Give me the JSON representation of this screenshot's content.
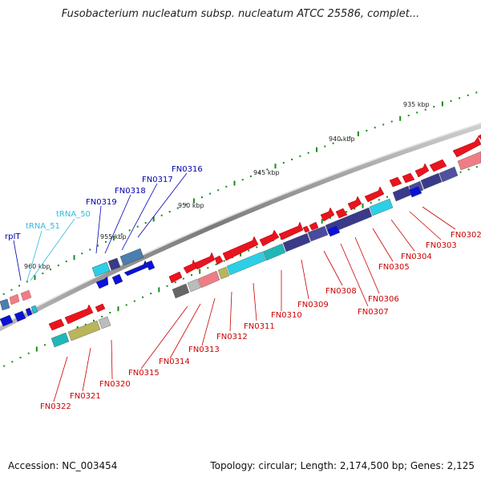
{
  "title": "Fusobacterium nucleatum subsp. nucleatum ATCC 25586, complet...",
  "footer": {
    "accession": "Accession: NC_003454",
    "summary": "Topology: circular; Length: 2,174,500 bp; Genes: 2,125"
  },
  "scale_labels": [
    "935 kbp",
    "940 kbp",
    "945 kbp",
    "950 kbp",
    "955 kbp",
    "960 kbp"
  ],
  "upper_labels": [
    {
      "text": "rpIT",
      "color": "#0000aa"
    },
    {
      "text": "tRNA_51",
      "color": "#33bbdd"
    },
    {
      "text": "tRNA_50",
      "color": "#33bbdd"
    },
    {
      "text": "FN0319",
      "color": "#0000aa"
    },
    {
      "text": "FN0318",
      "color": "#0000aa"
    },
    {
      "text": "FN0317",
      "color": "#0000aa"
    },
    {
      "text": "FN0316",
      "color": "#0000aa"
    }
  ],
  "lower_labels": [
    "FN0302",
    "FN0303",
    "FN0304",
    "FN0305",
    "FN0306",
    "FN0307",
    "FN0308",
    "FN0309",
    "FN0310",
    "FN0311",
    "FN0312",
    "FN0313",
    "FN0314",
    "FN0315",
    "FN0320",
    "FN0321",
    "FN0322"
  ],
  "colors": {
    "forward_gene": "#e8141e",
    "reverse_gene": "#0b12d6",
    "rna": "#22bfe0",
    "cog_dark_blue": "#3a3a8a",
    "cog_cyan": "#2ccfe6",
    "cog_pink": "#f07d85",
    "cog_olive": "#b8b55a",
    "cog_grey": "#bcbcbc",
    "backbone": "#8a8a8a",
    "scale_tick": "#1a8a1a",
    "label_red": "#cc0000",
    "label_blue": "#0000aa"
  }
}
